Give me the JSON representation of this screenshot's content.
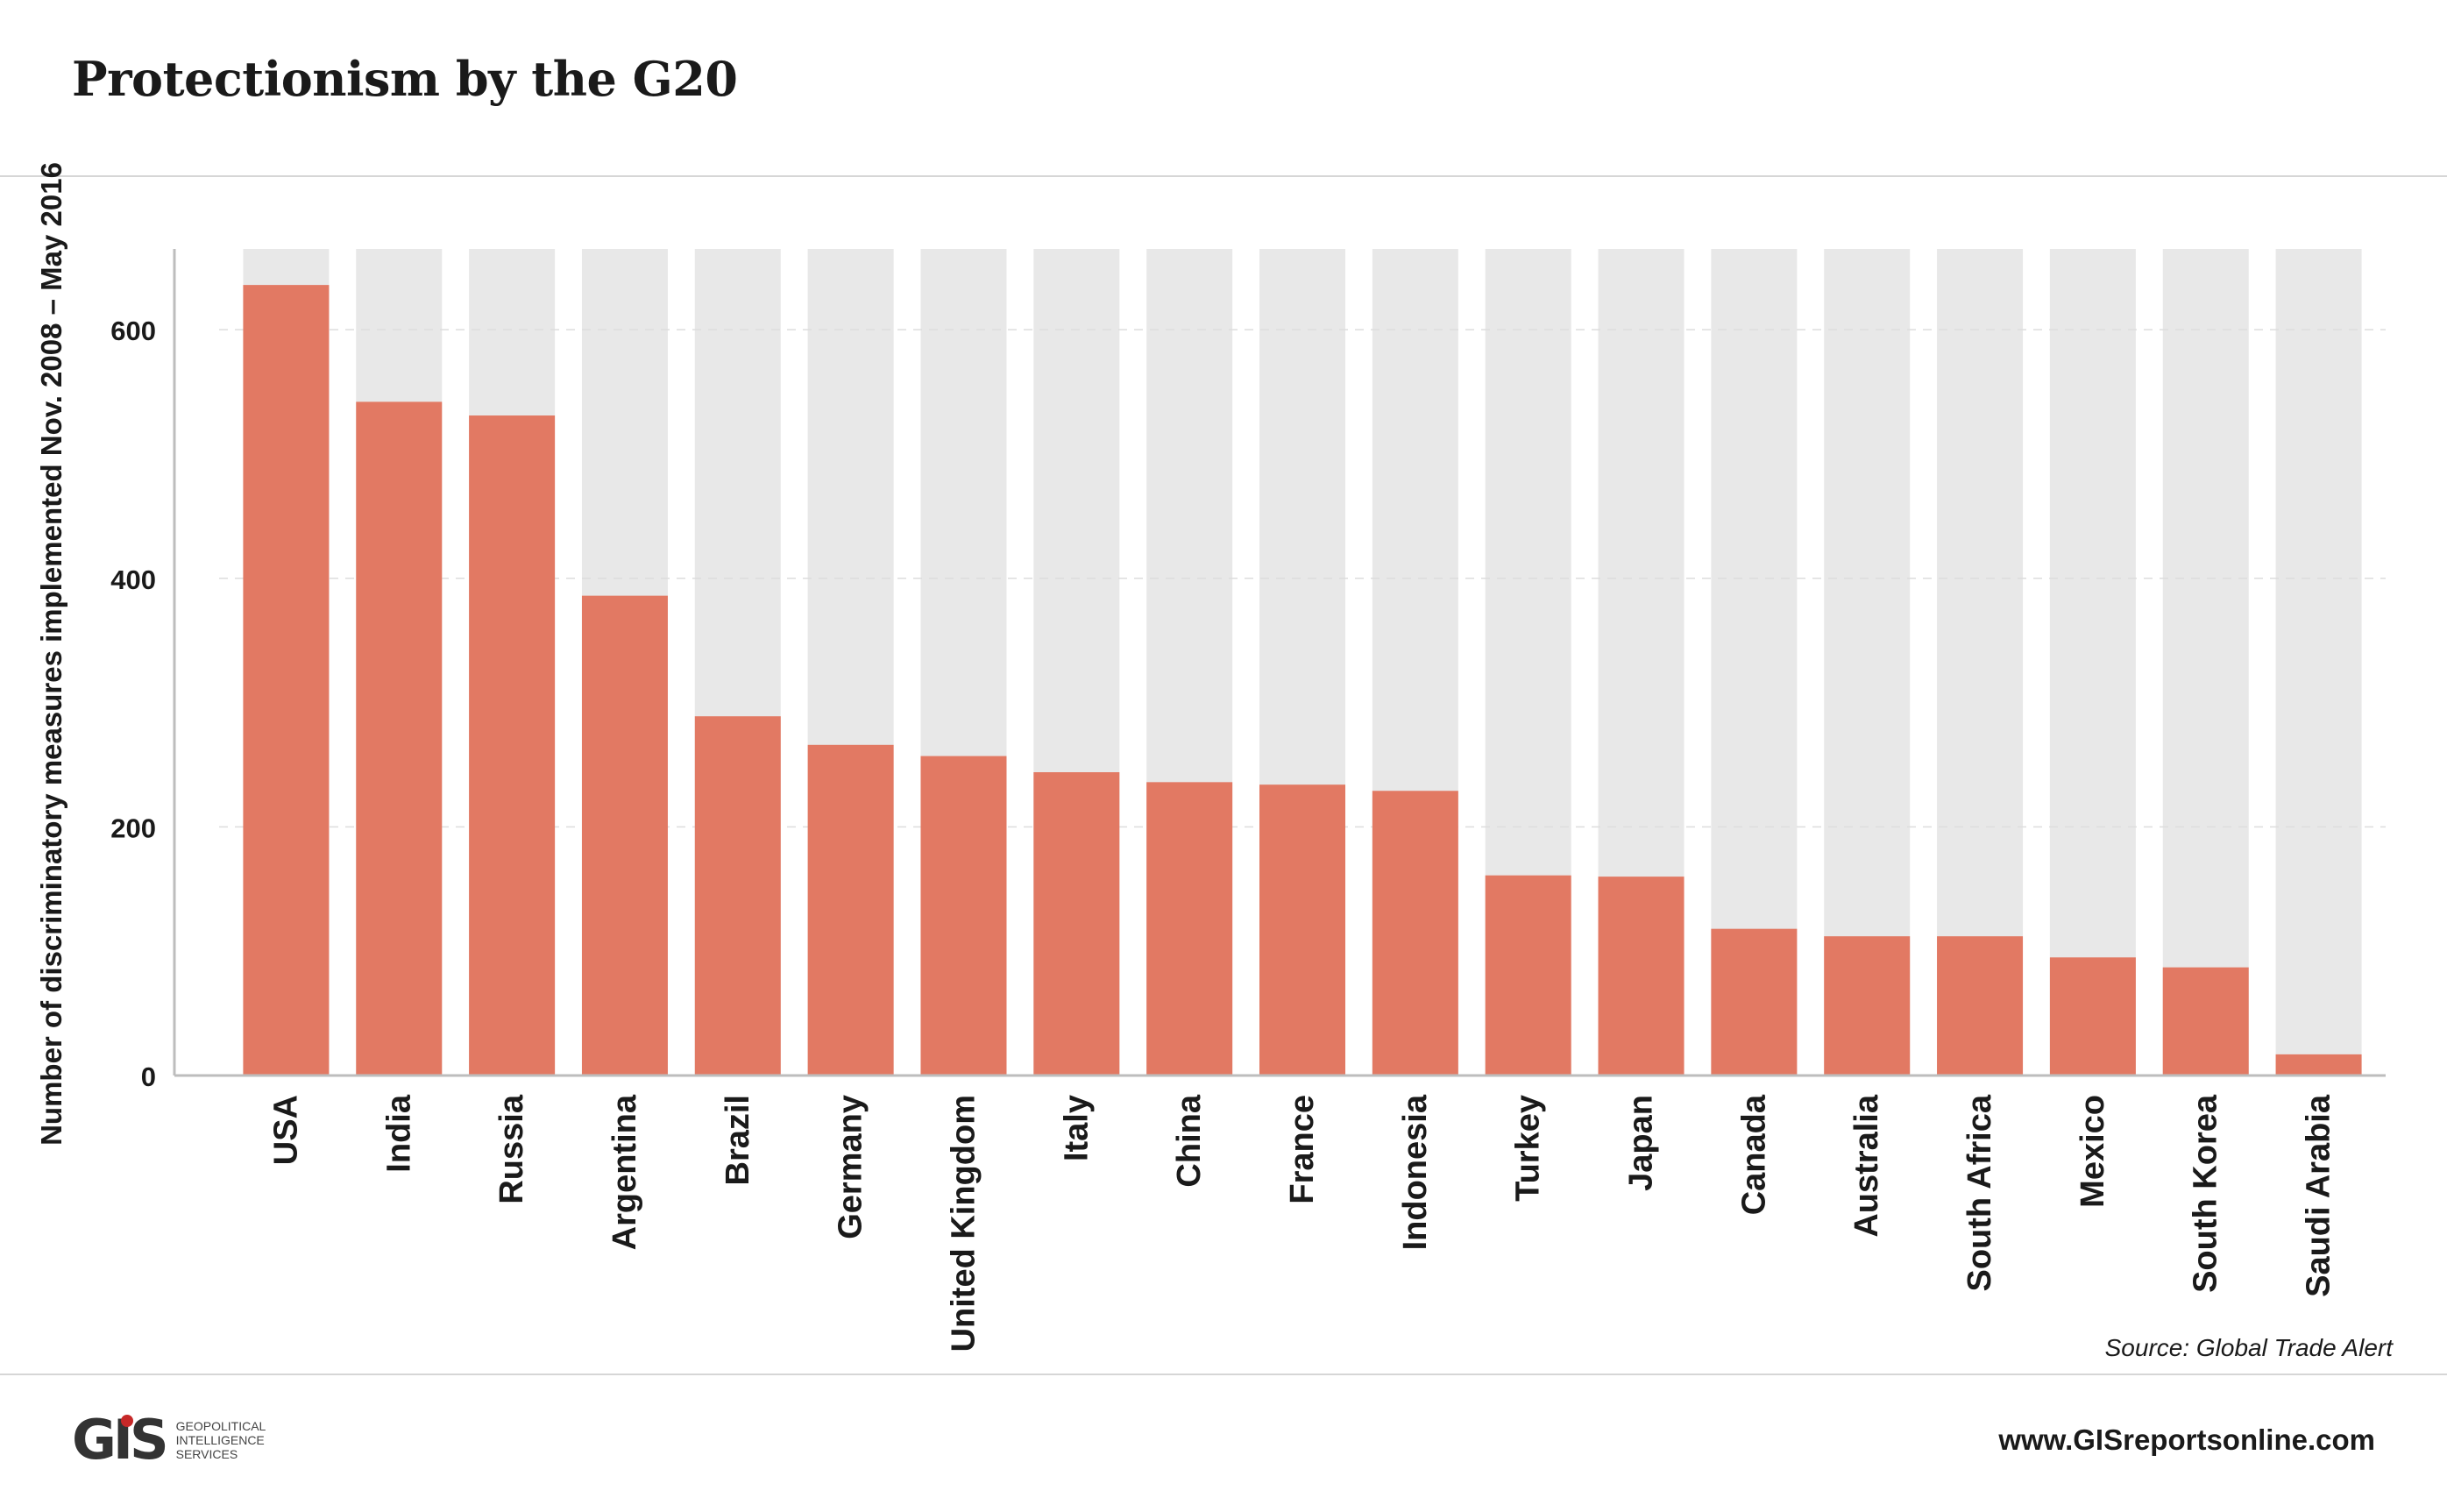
{
  "header": {
    "title": "Protectionism by the G20"
  },
  "footer": {
    "source": "Source: Global Trade Alert",
    "url": "www.GISreportsonline.com",
    "logo_mark": "GIS",
    "logo_lines": [
      "GEOPOLITICAL",
      "INTELLIGENCE",
      "SERVICES"
    ]
  },
  "colors": {
    "bar": "#e27963",
    "background_bar": "#e8e8e8",
    "axis": "#bdbdbd",
    "text": "#1a1a1a"
  },
  "chart_data": {
    "type": "bar",
    "title": "Protectionism by the G20",
    "xlabel": "",
    "ylabel": "Number of discriminatory measures implemented Nov. 2008 – May 2016",
    "ylim": [
      0,
      665
    ],
    "yticks": [
      0,
      200,
      400,
      600
    ],
    "grid": true,
    "categories": [
      "USA",
      "India",
      "Russia",
      "Argentina",
      "Brazil",
      "Germany",
      "United Kingdom",
      "Italy",
      "China",
      "France",
      "Indonesia",
      "Turkey",
      "Japan",
      "Canada",
      "Australia",
      "South Africa",
      "Mexico",
      "South Korea",
      "Saudi Arabia"
    ],
    "values": [
      636,
      542,
      531,
      386,
      289,
      266,
      257,
      244,
      236,
      234,
      229,
      161,
      160,
      118,
      112,
      112,
      95,
      87,
      17
    ]
  }
}
